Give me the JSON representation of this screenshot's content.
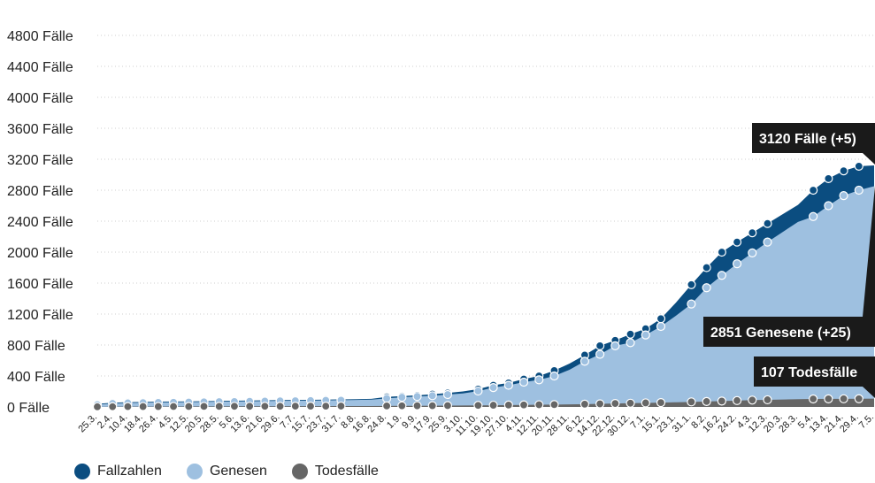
{
  "chart_data": {
    "type": "area",
    "y_tick_labels": [
      "0 Fälle",
      "400 Fälle",
      "800 Fälle",
      "1200 Fälle",
      "1600 Fälle",
      "2000 Fälle",
      "2400 Fälle",
      "2800 Fälle",
      "3200 Fälle",
      "3600 Fälle",
      "4000 Fälle",
      "4400 Fälle",
      "4800 Fälle"
    ],
    "ylim": [
      0,
      4800
    ],
    "x": [
      "25.3.",
      "2.4.",
      "10.4.",
      "18.4.",
      "26.4.",
      "4.5.",
      "12.5.",
      "20.5.",
      "28.5.",
      "5.6.",
      "13.6.",
      "21.6.",
      "29.6.",
      "7.7.",
      "15.7.",
      "23.7.",
      "31.7.",
      "8.8.",
      "16.8.",
      "24.8.",
      "1.9.",
      "9.9.",
      "17.9.",
      "25.9.",
      "3.10.",
      "11.10.",
      "19.10.",
      "27.10.",
      "4.11.",
      "12.11.",
      "20.11.",
      "28.11.",
      "6.12.",
      "14.12.",
      "22.12.",
      "30.12.",
      "7.1.",
      "15.1.",
      "23.1.",
      "31.1.",
      "8.2.",
      "16.2.",
      "24.2.",
      "4.3.",
      "12.3.",
      "20.3.",
      "28.3.",
      "5.4.",
      "13.4.",
      "21.4.",
      "29.4.",
      "7.5."
    ],
    "series": [
      {
        "name": "Fallzahlen",
        "color": "#0b4d80",
        "values": [
          40,
          55,
          62,
          65,
          68,
          70,
          72,
          74,
          77,
          80,
          83,
          86,
          88,
          90,
          92,
          95,
          97,
          100,
          105,
          130,
          140,
          150,
          165,
          180,
          200,
          230,
          280,
          310,
          360,
          400,
          470,
          560,
          670,
          790,
          860,
          940,
          1010,
          1140,
          1350,
          1580,
          1800,
          2000,
          2130,
          2250,
          2370,
          2490,
          2610,
          2800,
          2950,
          3050,
          3110,
          3120
        ]
      },
      {
        "name": "Genesen",
        "color": "#9ec0e0",
        "values": [
          30,
          45,
          52,
          55,
          58,
          60,
          63,
          65,
          68,
          70,
          73,
          76,
          78,
          80,
          82,
          85,
          87,
          90,
          95,
          110,
          125,
          135,
          145,
          160,
          175,
          205,
          250,
          280,
          320,
          350,
          400,
          480,
          590,
          680,
          790,
          830,
          930,
          1040,
          1180,
          1330,
          1540,
          1700,
          1850,
          1990,
          2130,
          2260,
          2390,
          2460,
          2600,
          2730,
          2800,
          2851
        ]
      },
      {
        "name": "Todesfälle",
        "color": "#666666",
        "values": [
          2,
          3,
          4,
          5,
          5,
          6,
          6,
          7,
          7,
          8,
          8,
          9,
          9,
          10,
          10,
          10,
          11,
          11,
          12,
          13,
          14,
          15,
          16,
          17,
          18,
          20,
          22,
          24,
          26,
          28,
          30,
          33,
          36,
          40,
          44,
          48,
          52,
          56,
          60,
          65,
          70,
          76,
          82,
          88,
          92,
          96,
          100,
          103,
          104,
          105,
          106,
          107
        ]
      }
    ],
    "markers": [
      {
        "series": 0,
        "indices": [
          0,
          1,
          2,
          3,
          4,
          5,
          6,
          7,
          8,
          9,
          10,
          11,
          12,
          13,
          14,
          15,
          16,
          19,
          20,
          21,
          22,
          23,
          25,
          26,
          27,
          28,
          29,
          30,
          32,
          33,
          34,
          35,
          36,
          37,
          39,
          40,
          41,
          42,
          43,
          44,
          47,
          48,
          49,
          50
        ]
      },
      {
        "series": 1,
        "indices": [
          0,
          1,
          2,
          3,
          4,
          5,
          6,
          7,
          8,
          9,
          10,
          11,
          12,
          13,
          14,
          15,
          16,
          19,
          20,
          21,
          22,
          23,
          25,
          26,
          27,
          28,
          29,
          30,
          32,
          33,
          34,
          35,
          36,
          37,
          39,
          40,
          41,
          42,
          43,
          44,
          47,
          48,
          49,
          50
        ]
      },
      {
        "series": 2,
        "indices": [
          0,
          1,
          2,
          3,
          4,
          5,
          6,
          7,
          8,
          9,
          10,
          11,
          12,
          13,
          14,
          15,
          16,
          19,
          20,
          21,
          22,
          23,
          25,
          26,
          27,
          28,
          29,
          30,
          32,
          33,
          34,
          35,
          36,
          37,
          39,
          40,
          41,
          42,
          43,
          44,
          47,
          48,
          49,
          50
        ]
      }
    ],
    "annotations": {
      "cases": "3120 Fälle (+5)",
      "recovered": "2851 Genesene (+25)",
      "deaths": "107 Todesfälle"
    },
    "legend": {
      "placement": "bottom-left"
    }
  },
  "legend": {
    "items": [
      {
        "label": "Fallzahlen",
        "color": "#0b4d80"
      },
      {
        "label": "Genesen",
        "color": "#9ec0e0"
      },
      {
        "label": "Todesfälle",
        "color": "#666666"
      }
    ]
  }
}
